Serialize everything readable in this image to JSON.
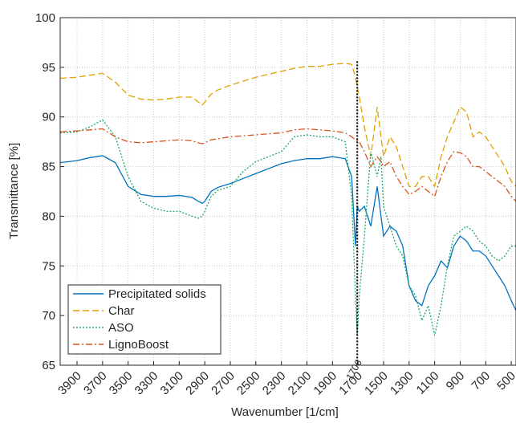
{
  "chart_data": {
    "type": "line",
    "xlabel": "Wavenumber [1/cm]",
    "ylabel": "Transmittance [%]",
    "xlim": [
      4032,
      463
    ],
    "ylim": [
      65,
      100
    ],
    "x_reversed": true,
    "grid": true,
    "legend": "lower left",
    "xticks": [
      3900,
      3700,
      3500,
      3300,
      3100,
      2900,
      2700,
      2500,
      2300,
      2100,
      1900,
      1700,
      1500,
      1300,
      1100,
      900,
      700,
      500
    ],
    "yticks": [
      65,
      70,
      75,
      80,
      85,
      90,
      95,
      100
    ],
    "vline": 1706,
    "x": [
      4032,
      3900,
      3800,
      3700,
      3600,
      3500,
      3400,
      3300,
      3200,
      3100,
      3000,
      2950,
      2920,
      2900,
      2850,
      2800,
      2700,
      2600,
      2500,
      2400,
      2300,
      2200,
      2100,
      2000,
      1900,
      1800,
      1750,
      1720,
      1706,
      1690,
      1650,
      1600,
      1550,
      1520,
      1500,
      1450,
      1400,
      1350,
      1300,
      1250,
      1200,
      1150,
      1100,
      1050,
      1000,
      950,
      900,
      850,
      800,
      750,
      700,
      650,
      600,
      550,
      500,
      463
    ],
    "series": [
      {
        "name": "Precipitated solids",
        "color": "#0072BD",
        "dash": "solid",
        "values": [
          85.4,
          85.6,
          85.9,
          86.1,
          85.4,
          83,
          82.2,
          82,
          82,
          82.1,
          81.9,
          81.5,
          81.3,
          81.5,
          82.5,
          82.9,
          83.3,
          83.8,
          84.3,
          84.8,
          85.3,
          85.6,
          85.8,
          85.8,
          86,
          85.8,
          84,
          77,
          81,
          80.5,
          81,
          79,
          83,
          80,
          78,
          79,
          78.5,
          77,
          73,
          71.5,
          71,
          73,
          74,
          75.5,
          74.8,
          77,
          78,
          77.5,
          76.5,
          76.5,
          76,
          75,
          74,
          73,
          71.5,
          70.5
        ]
      },
      {
        "name": "Char",
        "color": "#E0A000",
        "dash": "dashed",
        "values": [
          93.9,
          94,
          94.2,
          94.4,
          93.5,
          92.2,
          91.8,
          91.7,
          91.8,
          92,
          92,
          91.5,
          91.2,
          91.5,
          92.3,
          92.7,
          93.2,
          93.6,
          94,
          94.3,
          94.6,
          94.9,
          95.1,
          95.1,
          95.3,
          95.4,
          95.3,
          94,
          93,
          92,
          89,
          86,
          91,
          88,
          86,
          88,
          87,
          85,
          83,
          83,
          84,
          84,
          83,
          86,
          88,
          89.5,
          91,
          90.5,
          88,
          88.5,
          88,
          87,
          86,
          85,
          83.5,
          83
        ]
      },
      {
        "name": "ASO",
        "color": "#20A868",
        "dash": "dotted",
        "values": [
          88.4,
          88.5,
          89,
          89.7,
          88,
          84,
          81.5,
          80.8,
          80.5,
          80.5,
          80,
          79.8,
          80,
          80.5,
          82,
          82.6,
          83,
          84.5,
          85.5,
          86,
          86.5,
          88,
          88.2,
          88,
          88,
          87.5,
          82,
          72,
          68,
          72,
          78,
          86.5,
          84,
          86,
          81,
          79,
          77,
          76,
          73,
          72,
          69.5,
          71,
          68,
          71,
          75,
          78,
          78.5,
          79,
          78.5,
          77.5,
          77,
          76,
          75.5,
          76,
          77,
          77
        ]
      },
      {
        "name": "LignoBoost",
        "color": "#D95319",
        "dash": "dashdot",
        "values": [
          88.5,
          88.6,
          88.7,
          88.8,
          88,
          87.5,
          87.4,
          87.5,
          87.6,
          87.7,
          87.6,
          87.4,
          87.3,
          87.4,
          87.7,
          87.8,
          88,
          88.1,
          88.2,
          88.3,
          88.4,
          88.7,
          88.8,
          88.7,
          88.6,
          88.4,
          88,
          87.7,
          87.6,
          87.5,
          86.5,
          85,
          86,
          85.5,
          85,
          85.5,
          84,
          83,
          82.2,
          82.5,
          83,
          82.5,
          82,
          84,
          85.5,
          86.5,
          86.4,
          86,
          85,
          85,
          84.5,
          84,
          83.5,
          83,
          82,
          81.5
        ]
      }
    ]
  }
}
